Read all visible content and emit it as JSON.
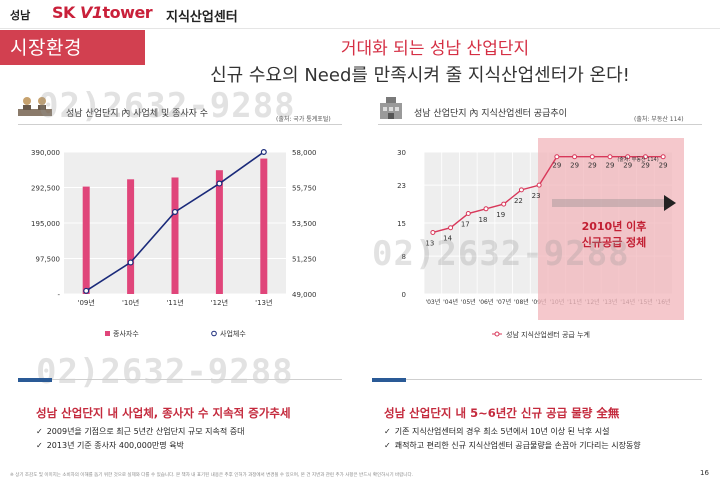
{
  "header": {
    "sub": "성남",
    "logo_sk": "SK",
    "logo_v1": "V1",
    "logo_tower": "tower",
    "title": "지식산업센터"
  },
  "section": {
    "title": "시장환경"
  },
  "headline": {
    "line1": "거대화 되는 성남 산업단지",
    "line2": "신규 수요의 Need를 만족시켜 줄 지식산업센터가 온다!"
  },
  "watermark": "02)2632-9288",
  "left_chart": {
    "title": "성남 산업단지 內 사업체 및 종사자 수",
    "source": "(출처: 국가 통계포털)",
    "legend_bar": "종사자수",
    "legend_line": "사업체수"
  },
  "right_chart": {
    "title": "성남 산업단지 內 지식산업센터 공급추이",
    "source": "(출처: 부동산 114)",
    "legend": "성남 지식산업센터 공급 누계",
    "callout_line1": "2010년 이후",
    "callout_line2": "신규공급 정체",
    "inner_note": "(출처: 부동산 114)"
  },
  "summary_left": {
    "title": "성남 산업단지 내 사업체, 종사자 수 지속적 증가추세",
    "bullets": [
      "2009년을 기점으로 최근 5년간 산업단지 규모 지속적 증대",
      "2013년 기준 종사자 400,000만명 육박"
    ]
  },
  "summary_right": {
    "title": "성남 산업단지 내 5~6년간 신규 공급 물량 全無",
    "bullets": [
      "기존 지식산업센터의 경우 최소 5년에서 10년 이상 된 낙후 시설",
      "쾌적하고 편리한 신규 지식산업센터 공급물량을 손꼽아 기다리는 시장동향"
    ]
  },
  "footnote": "※ 상기 조감도 및 이미지는 소비자의 이해를 돕기 위한 것으로 실제와 다를 수 있습니다. 본 책자 내 표기된 내용은 추후 인허가 과정에서 변경될 수 있으며, 본 건 지번과 관련 추가 사항은 반드시 확인하시기 바랍니다.",
  "page_number": "16",
  "colors": {
    "brand_red": "#c9203a",
    "section_red": "#d24050",
    "bar_fill": "#e0457a",
    "line_navy": "#1a2a7a",
    "highlight": "#f2b8be",
    "rule_blue": "#2a5a96"
  },
  "chart_data": [
    {
      "type": "bar",
      "title": "성남 산업단지 內 사업체 및 종사자 수",
      "categories": [
        "'09년",
        "'10년",
        "'11년",
        "'12년",
        "'13년"
      ],
      "series": [
        {
          "name": "종사자수",
          "axis": "left",
          "values": [
            295000,
            315000,
            320000,
            340000,
            372000
          ]
        },
        {
          "name": "사업체수",
          "axis": "right",
          "type": "line",
          "values": [
            49200,
            51000,
            54200,
            56000,
            58000
          ]
        }
      ],
      "ylim_left": [
        0,
        390000
      ],
      "ylim_right": [
        49000,
        58000
      ],
      "yticks_left": [
        "390,000",
        "292,500",
        "195,000",
        "97,500",
        "-"
      ],
      "yticks_right": [
        "58,000",
        "55,750",
        "53,500",
        "51,250",
        "49,000"
      ],
      "grid": true,
      "legend": "bottom"
    },
    {
      "type": "line",
      "title": "성남 산업단지 內 지식산업센터 공급추이",
      "categories": [
        "'03년",
        "'04년",
        "'05년",
        "'06년",
        "'07년",
        "'08년",
        "'09년",
        "'10년",
        "'11년",
        "'12년",
        "'13년",
        "'14년",
        "'15년",
        "'16년"
      ],
      "series": [
        {
          "name": "성남 지식산업센터 공급 누계",
          "values": [
            13,
            14,
            17,
            18,
            19,
            22,
            23,
            29,
            29,
            29,
            29,
            29,
            29,
            29
          ]
        }
      ],
      "ylim": [
        0,
        30
      ],
      "yticks": [
        "0",
        "8",
        "15",
        "23",
        "30"
      ],
      "grid": true,
      "legend": "bottom"
    }
  ]
}
